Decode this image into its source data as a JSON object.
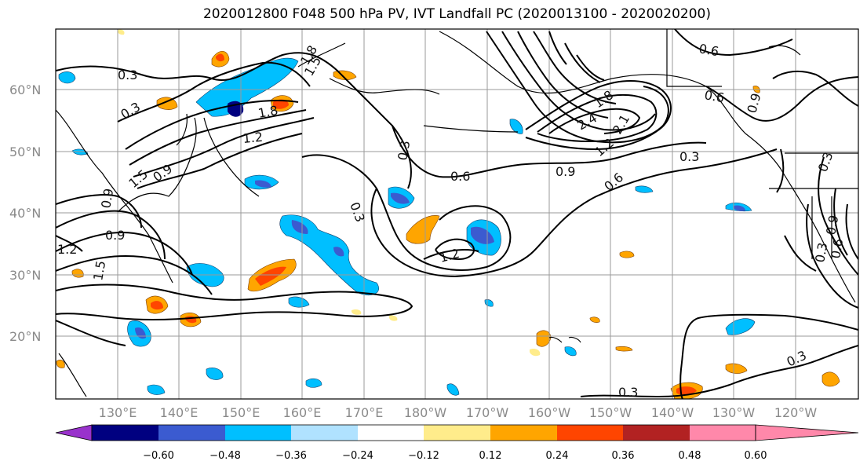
{
  "title": "2020012800 F048 500 hPa PV, IVT Landfall PC (2020013100 - 2020020200)",
  "latitude_labels": [
    "60°N",
    "50°N",
    "40°N",
    "30°N",
    "20°N"
  ],
  "longitude_labels": [
    "130°E",
    "140°E",
    "150°E",
    "160°E",
    "170°E",
    "180°W",
    "170°W",
    "160°W",
    "150°W",
    "140°W",
    "130°W",
    "120°W"
  ],
  "contour_labels": [
    "0.3",
    "0.3",
    "1.8",
    "1.5",
    "1.8",
    "1.2",
    "0.9",
    "1.5",
    "0.9",
    "1.2",
    "1.5",
    "0.9",
    "0.3",
    "0.3",
    "0.6",
    "1.2",
    "2.4",
    "1.8",
    "2.1",
    "1.2",
    "0.9",
    "0.6",
    "0.3",
    "0.6",
    "0.6",
    "0.9",
    "0.3",
    "0.3",
    "0.6",
    "0.9",
    "0.3",
    "0.3"
  ],
  "colorbar": {
    "tick_labels": [
      "−0.60",
      "−0.48",
      "−0.36",
      "−0.24",
      "−0.12",
      "0.12",
      "0.24",
      "0.36",
      "0.48",
      "0.60"
    ],
    "colors": [
      "#9932cc",
      "#000080",
      "#3b5bd0",
      "#00bfff",
      "#b0e2ff",
      "#ffffff",
      "#ffec8b",
      "#ffa500",
      "#ff4500",
      "#b22222",
      "#ff88aa"
    ]
  },
  "colors": {
    "negative": "#00bfff",
    "positive": "#ffa500",
    "contour": "#000000",
    "grid": "#9a9a9a"
  }
}
